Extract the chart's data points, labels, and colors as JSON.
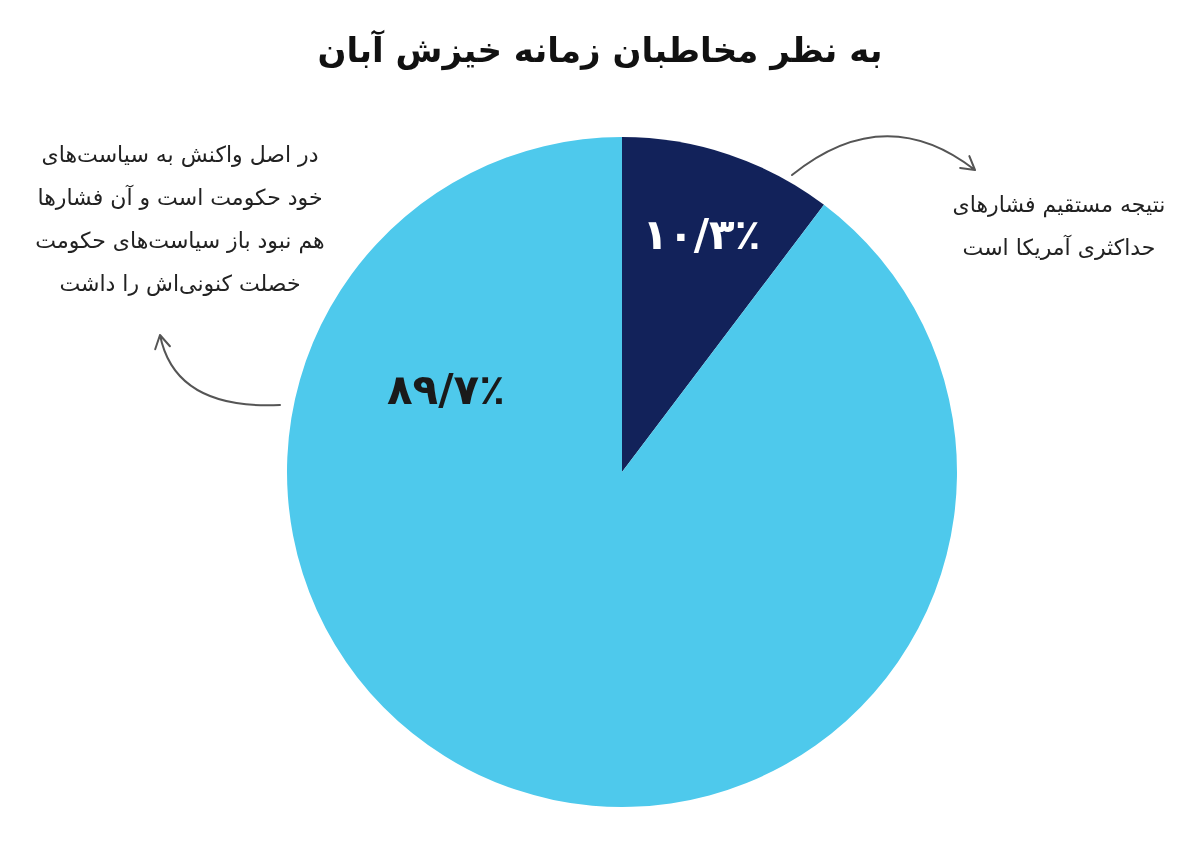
{
  "chart_data": {
    "type": "pie",
    "title": "به نظر مخاطبان زمانه خیزش آبان",
    "categories": [
      "نتیجه مستقیم فشارهای حداکثری آمریکا است",
      "در اصل واکنش به سیاست‌های خود حکومت است و آن فشارها هم نبود باز سیاست‌های حکومت خصلت کنونی‌اش را داشت"
    ],
    "values": [
      10.3,
      89.7
    ],
    "colors": [
      "#12225a",
      "#4ec9ec"
    ],
    "value_labels": [
      "۱۰/۳٪",
      "۸۹/۷٪"
    ]
  }
}
